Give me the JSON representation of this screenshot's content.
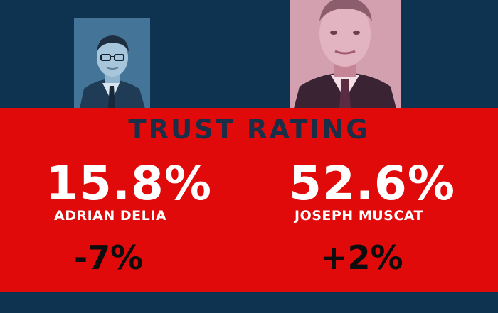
{
  "title": "TRUST RATING",
  "colors": {
    "background": "#0e3350",
    "band": "#e00a0b",
    "title_text": "#1a2f47",
    "value_text": "#ffffff",
    "change_text": "#0d0d0d",
    "left_photo_tint": "#3e6f93",
    "right_photo_tint": "#d8a9b7"
  },
  "candidates": [
    {
      "name": "ADRIAN DELIA",
      "rating": "15.8%",
      "change": "-7%",
      "photo": "portrait-photo"
    },
    {
      "name": "JOSEPH MUSCAT",
      "rating": "52.6%",
      "change": "+2%",
      "photo": "portrait-photo"
    }
  ]
}
